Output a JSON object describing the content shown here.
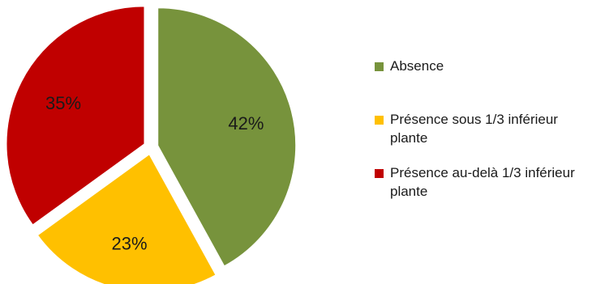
{
  "chart_data": {
    "type": "pie",
    "categories": [
      "Absence",
      "Présence sous 1/3 inférieur plante",
      "Présence au-delà 1/3 inférieur plante"
    ],
    "values": [
      42,
      23,
      35
    ],
    "labels": [
      "42%",
      "23%",
      "35%"
    ],
    "colors": [
      "#77933C",
      "#FFC000",
      "#C00000"
    ],
    "exploded": true,
    "legend_position": "right",
    "title": ""
  }
}
